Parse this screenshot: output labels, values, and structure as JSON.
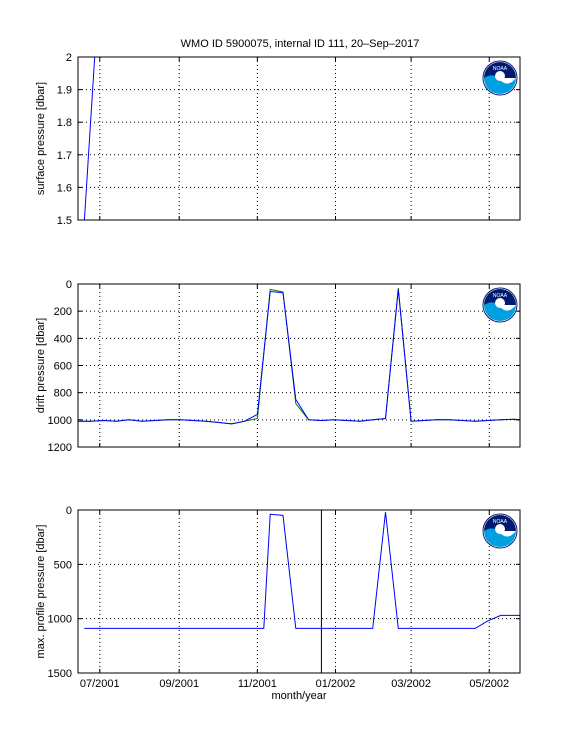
{
  "figure_title": "WMO ID 5900075, internal ID 111, 20–Sep–2017",
  "logo_text": "NOAA",
  "colors": {
    "blue": "#0000ff",
    "green": "#007f00",
    "black": "#000000",
    "logo_dark": "#001a72",
    "logo_light": "#00a0e0"
  },
  "chart_data": [
    {
      "type": "line",
      "ylabel": "surface pressure [dbar]",
      "xlim": [
        "2001-06-14",
        "2002-05-25"
      ],
      "ylim": [
        1.5,
        2.0
      ],
      "y_reversed": false,
      "yticks": [
        1.5,
        1.6,
        1.7,
        1.8,
        1.9,
        2.0
      ],
      "ytick_labels": [
        "1.5",
        "1.6",
        "1.7",
        "1.8",
        "1.9",
        "2"
      ],
      "grid": true,
      "series": [
        {
          "color": "blue",
          "x": [
            "2001-06-19",
            "2001-06-27",
            "2002-05-25"
          ],
          "y": [
            1.5,
            2.0,
            2.0
          ]
        }
      ]
    },
    {
      "type": "line",
      "ylabel": "drift pressure [dbar]",
      "xlim": [
        "2001-06-14",
        "2002-05-25"
      ],
      "ylim": [
        0,
        1200
      ],
      "y_reversed": true,
      "yticks": [
        0,
        200,
        400,
        600,
        800,
        1000,
        1200
      ],
      "ytick_labels": [
        "0",
        "200",
        "400",
        "600",
        "800",
        "1000",
        "1200"
      ],
      "grid": true,
      "series": [
        {
          "color": "blue",
          "x": [
            "2001-06-14",
            "2001-06-24",
            "2001-07-04",
            "2001-07-14",
            "2001-07-24",
            "2001-08-03",
            "2001-08-13",
            "2001-08-23",
            "2001-09-02",
            "2001-09-12",
            "2001-09-22",
            "2001-10-02",
            "2001-10-12",
            "2001-10-22",
            "2001-11-01",
            "2001-11-11",
            "2001-11-21",
            "2001-12-01",
            "2001-12-11",
            "2001-12-21",
            "2001-12-31",
            "2002-01-10",
            "2002-01-20",
            "2002-01-30",
            "2002-02-09",
            "2002-02-19",
            "2002-03-01",
            "2002-03-11",
            "2002-03-21",
            "2002-03-31",
            "2002-04-10",
            "2002-04-20",
            "2002-04-30",
            "2002-05-10",
            "2002-05-20",
            "2002-05-25"
          ],
          "y": [
            1010,
            1010,
            1005,
            1010,
            1000,
            1010,
            1005,
            1000,
            1000,
            1005,
            1010,
            1020,
            1030,
            1010,
            960,
            55,
            65,
            850,
            1000,
            1005,
            1000,
            1005,
            1010,
            1000,
            990,
            40,
            1010,
            1005,
            1000,
            1000,
            1005,
            1010,
            1005,
            1000,
            995,
            1000
          ]
        },
        {
          "color": "green",
          "x": [
            "2001-06-14",
            "2001-06-24",
            "2001-07-04",
            "2001-07-14",
            "2001-07-24",
            "2001-08-03",
            "2001-08-13",
            "2001-08-23",
            "2001-09-02",
            "2001-09-12",
            "2001-09-22",
            "2001-10-02",
            "2001-10-12",
            "2001-10-22",
            "2001-11-01",
            "2001-11-11",
            "2001-11-21",
            "2001-12-01",
            "2001-12-11",
            "2001-12-21",
            "2001-12-31",
            "2002-01-10",
            "2002-01-20",
            "2002-01-30",
            "2002-02-09",
            "2002-02-19",
            "2002-03-01",
            "2002-03-11",
            "2002-03-21",
            "2002-03-31",
            "2002-04-10",
            "2002-04-20",
            "2002-04-30",
            "2002-05-10",
            "2002-05-20",
            "2002-05-25"
          ],
          "y": [
            1010,
            1010,
            1005,
            1010,
            1000,
            1010,
            1005,
            1000,
            1000,
            1005,
            1010,
            1020,
            1030,
            1010,
            990,
            40,
            60,
            880,
            1000,
            1005,
            1000,
            1005,
            1010,
            1000,
            990,
            30,
            1010,
            1005,
            1000,
            1000,
            1005,
            1010,
            1005,
            1000,
            995,
            1000
          ]
        }
      ]
    },
    {
      "type": "line",
      "ylabel": "max. profile pressure [dbar]",
      "xlabel": "month/year",
      "xlim": [
        "2001-06-14",
        "2002-05-25"
      ],
      "ylim": [
        0,
        1500
      ],
      "y_reversed": true,
      "yticks": [
        0,
        500,
        1000,
        1500
      ],
      "ytick_labels": [
        "0",
        "500",
        "1000",
        "1500"
      ],
      "xticks": [
        "2001-07-01",
        "2001-09-01",
        "2001-11-01",
        "2002-01-01",
        "2002-03-01",
        "2002-05-01"
      ],
      "xtick_labels": [
        "07/2001",
        "09/2001",
        "11/2001",
        "01/2002",
        "03/2002",
        "05/2002"
      ],
      "grid": true,
      "vline": "2001-12-21",
      "series": [
        {
          "color": "blue",
          "x": [
            "2001-06-19",
            "2001-11-06",
            "2001-11-11",
            "2001-11-21",
            "2001-12-01",
            "2001-12-11",
            "2002-01-30",
            "2002-02-09",
            "2002-02-19",
            "2002-04-20",
            "2002-04-30",
            "2002-05-10",
            "2002-05-25"
          ],
          "y": [
            1090,
            1090,
            40,
            50,
            1090,
            1090,
            1090,
            20,
            1090,
            1090,
            1020,
            970,
            970
          ]
        }
      ]
    }
  ]
}
